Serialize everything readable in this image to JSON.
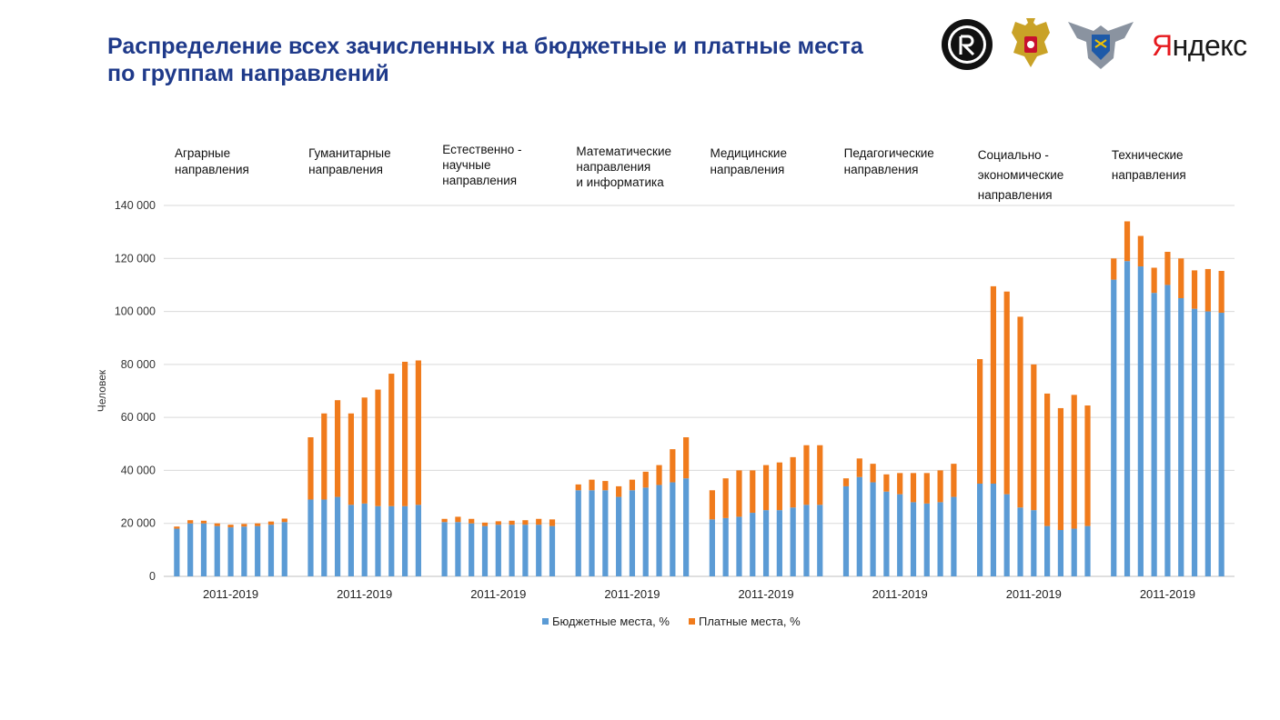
{
  "title": {
    "line1": "Распределение всех зачисленных на бюджетные и платные места",
    "line2": "по группам направлений"
  },
  "logos": {
    "hse": "HSE-logo",
    "eagle": "russian-coat-of-arms-logo",
    "rosobr": "rosobrnadzor-logo",
    "yandex_first": "Я",
    "yandex_rest": "ндекс"
  },
  "colors": {
    "budget": "#5b9bd5",
    "paid": "#f07b1c",
    "grid": "#d9d9d9",
    "title": "#1f3a8a"
  },
  "chart_data": {
    "type": "bar",
    "stacked": true,
    "ylabel": "Человек",
    "ylim": [
      0,
      140000
    ],
    "yticks": [
      0,
      20000,
      40000,
      60000,
      80000,
      100000,
      120000,
      140000
    ],
    "ytick_labels": [
      "0",
      "20 000",
      "40 000",
      "60 000",
      "80 000",
      "100 000",
      "120 000",
      "140 000"
    ],
    "grid": true,
    "legend_position": "bottom",
    "legend": [
      "Бюджетные места, %",
      "Платные места, %"
    ],
    "groups": [
      {
        "label": "Аграрные\nнаправления",
        "xlabel": "2011-2019",
        "budget": [
          18000,
          20000,
          20000,
          19000,
          18500,
          18800,
          19000,
          19500,
          20500
        ],
        "paid": [
          800,
          1200,
          1000,
          1000,
          1000,
          1000,
          1000,
          1200,
          1300
        ]
      },
      {
        "label": "Гуманитарные\nнаправления",
        "xlabel": "2011-2019",
        "budget": [
          29000,
          29000,
          30000,
          27000,
          27500,
          26500,
          26500,
          26500,
          27000
        ],
        "paid": [
          23500,
          32500,
          36500,
          34500,
          40000,
          44000,
          50000,
          54500,
          54500
        ]
      },
      {
        "label": "Естественно  -\nнаучные\nнаправления",
        "xlabel": "2011-2019",
        "budget": [
          20500,
          20500,
          20000,
          19000,
          19500,
          19500,
          19500,
          19500,
          19000
        ],
        "paid": [
          1200,
          2000,
          1700,
          1300,
          1300,
          1500,
          1700,
          2200,
          2500
        ]
      },
      {
        "label": "Математические\nнаправления\nи информатика",
        "xlabel": "2011-2019",
        "budget": [
          32500,
          32500,
          32500,
          30000,
          32500,
          33500,
          34500,
          35500,
          37000
        ],
        "paid": [
          2200,
          4000,
          3500,
          4000,
          4000,
          6000,
          7500,
          12500,
          15500
        ]
      },
      {
        "label": "Медицинские\nнаправления",
        "xlabel": "2011-2019",
        "budget": [
          21500,
          22000,
          22500,
          24000,
          25000,
          25000,
          26000,
          27000,
          27000
        ],
        "paid": [
          11000,
          15000,
          17500,
          16000,
          17000,
          18000,
          19000,
          22500,
          22500
        ]
      },
      {
        "label": "Педагогические\nнаправления",
        "xlabel": "2011-2019",
        "budget": [
          34000,
          37500,
          35500,
          32000,
          31000,
          28000,
          27500,
          28000,
          30000
        ],
        "paid": [
          3000,
          7000,
          7000,
          6500,
          8000,
          11000,
          11500,
          12000,
          12500
        ]
      },
      {
        "label": "Социально  -\nэкономические\nнаправления",
        "xlabel": "2011-2019",
        "budget": [
          35000,
          35000,
          31000,
          26000,
          25000,
          19000,
          17500,
          18000,
          19000
        ],
        "paid": [
          47000,
          74500,
          76500,
          72000,
          55000,
          50000,
          46000,
          50500,
          45500
        ]
      },
      {
        "label": "Технические\nнаправления",
        "xlabel": "2011-2019",
        "budget": [
          112000,
          119000,
          117000,
          107000,
          110000,
          105000,
          101000,
          100000,
          99500
        ],
        "paid": [
          8000,
          15000,
          11500,
          9500,
          12500,
          15000,
          14500,
          16000,
          15800
        ]
      }
    ]
  }
}
